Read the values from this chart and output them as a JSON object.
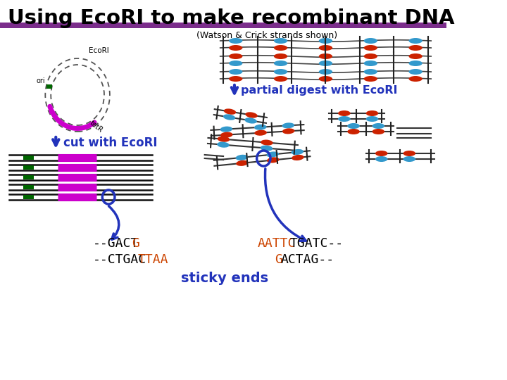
{
  "title": "Using EcoRI to make recombinant DNA",
  "title_color": "#000000",
  "purple_bar_color": "#7B2D8B",
  "subtitle": "(Watson & Crick strands shown)",
  "cut_label": "cut with EcoRI",
  "partial_label": "partial digest with EcoRI",
  "arrow_color": "#2233BB",
  "bg_color": "#FFFFFF",
  "orange_color": "#CC4400",
  "black_color": "#000000",
  "blue_color": "#2233BB",
  "green_color": "#006600",
  "magenta_color": "#CC00CC",
  "dark_color": "#111111",
  "red_color": "#CC2200",
  "cyan_color": "#3399CC",
  "gray_color": "#555555",
  "sticky_ends": "sticky ends"
}
